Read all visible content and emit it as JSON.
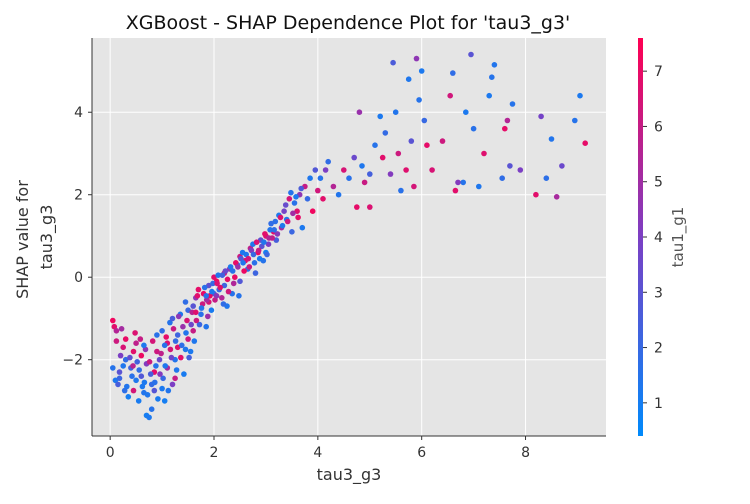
{
  "chart_data": {
    "type": "scatter",
    "title": "XGBoost - SHAP Dependence Plot for 'tau3_g3'",
    "xlabel": "tau3_g3",
    "ylabel_lines": [
      "SHAP value for",
      "tau3_g3"
    ],
    "xlim": [
      -0.35,
      9.55
    ],
    "ylim": [
      -3.85,
      5.8
    ],
    "x_ticks": [
      0,
      2,
      4,
      6,
      8
    ],
    "y_ticks": [
      -2,
      0,
      2,
      4
    ],
    "grid": true,
    "colorbar": {
      "label": "tau1_g1",
      "range": [
        0.4,
        7.6
      ],
      "ticks": [
        1,
        2,
        3,
        4,
        5,
        6,
        7
      ],
      "low_color": "#008afb",
      "mid_color": "#7c3fc4",
      "high_color": "#ff0052"
    },
    "colors": {
      "plot_bg": "#e5e5e5",
      "grid": "#ffffff",
      "axis": "#333333"
    },
    "points": [
      [
        0.05,
        -1.05,
        7.2
      ],
      [
        0.08,
        -1.2,
        6.8
      ],
      [
        0.12,
        -1.3,
        5.5
      ],
      [
        0.05,
        -2.2,
        1.5
      ],
      [
        0.1,
        -2.5,
        1.2
      ],
      [
        0.15,
        -2.6,
        2.5
      ],
      [
        0.18,
        -2.3,
        3.0
      ],
      [
        0.2,
        -1.9,
        4.0
      ],
      [
        0.25,
        -1.7,
        6.5
      ],
      [
        0.3,
        -2.0,
        1.8
      ],
      [
        0.3,
        -1.5,
        7.0
      ],
      [
        0.35,
        -2.9,
        1.0
      ],
      [
        0.4,
        -2.2,
        2.2
      ],
      [
        0.45,
        -1.8,
        6.8
      ],
      [
        0.5,
        -2.5,
        1.3
      ],
      [
        0.5,
        -1.6,
        5.8
      ],
      [
        0.55,
        -3.0,
        1.1
      ],
      [
        0.6,
        -2.4,
        2.8
      ],
      [
        0.6,
        -1.9,
        7.1
      ],
      [
        0.65,
        -2.8,
        1.4
      ],
      [
        0.7,
        -2.1,
        4.2
      ],
      [
        0.7,
        -3.35,
        1.0
      ],
      [
        0.75,
        -3.4,
        1.2
      ],
      [
        0.8,
        -3.2,
        1.5
      ],
      [
        0.8,
        -2.6,
        1.9
      ],
      [
        0.85,
        -2.3,
        6.9
      ],
      [
        0.9,
        -1.4,
        1.6
      ],
      [
        0.9,
        -1.8,
        6.2
      ],
      [
        0.95,
        -2.0,
        3.5
      ],
      [
        1.0,
        -1.3,
        1.8
      ],
      [
        1.0,
        -2.7,
        1.2
      ],
      [
        1.05,
        -3.0,
        1.0
      ],
      [
        1.1,
        -2.2,
        5.2
      ],
      [
        1.1,
        -1.6,
        6.6
      ],
      [
        1.15,
        -1.1,
        1.5
      ],
      [
        1.2,
        -2.6,
        4.0
      ],
      [
        1.2,
        -1.0,
        2.5
      ],
      [
        1.25,
        -2.0,
        1.4
      ],
      [
        1.3,
        -1.7,
        6.7
      ],
      [
        1.3,
        -1.4,
        2.2
      ],
      [
        1.35,
        -0.9,
        1.3
      ],
      [
        1.4,
        -1.2,
        4.8
      ],
      [
        1.45,
        -0.6,
        1.8
      ],
      [
        1.5,
        -1.5,
        6.3
      ],
      [
        1.5,
        -0.8,
        2.0
      ],
      [
        1.55,
        -1.8,
        1.2
      ],
      [
        1.6,
        -0.7,
        3.0
      ],
      [
        1.6,
        -1.3,
        6.0
      ],
      [
        1.65,
        -0.5,
        4.5
      ],
      [
        1.7,
        -0.3,
        6.9
      ],
      [
        1.75,
        -0.9,
        1.6
      ],
      [
        1.8,
        -0.4,
        7.0
      ],
      [
        1.85,
        -1.2,
        1.4
      ],
      [
        1.9,
        -0.2,
        3.2
      ],
      [
        1.9,
        -0.6,
        6.5
      ],
      [
        1.95,
        -0.8,
        1.1
      ],
      [
        2.0,
        0.0,
        6.8
      ],
      [
        2.0,
        -0.4,
        2.6
      ],
      [
        2.05,
        -0.1,
        7.2
      ],
      [
        2.1,
        -0.3,
        1.9
      ],
      [
        2.15,
        -0.5,
        5.5
      ],
      [
        2.2,
        0.1,
        6.1
      ],
      [
        2.2,
        -0.2,
        2.2
      ],
      [
        2.25,
        -0.7,
        1.3
      ],
      [
        2.3,
        0.2,
        4.6
      ],
      [
        2.35,
        -0.4,
        1.5
      ],
      [
        2.4,
        0.0,
        7.0
      ],
      [
        2.45,
        0.3,
        1.4
      ],
      [
        2.5,
        0.5,
        6.2
      ],
      [
        2.5,
        -0.1,
        2.8
      ],
      [
        2.55,
        0.6,
        1.2
      ],
      [
        2.6,
        0.4,
        6.8
      ],
      [
        2.65,
        0.2,
        1.7
      ],
      [
        2.7,
        0.7,
        5.8
      ],
      [
        2.75,
        0.8,
        1.3
      ],
      [
        2.8,
        0.1,
        2.2
      ],
      [
        2.85,
        0.6,
        7.1
      ],
      [
        2.9,
        0.9,
        3.2
      ],
      [
        2.95,
        0.4,
        1.5
      ],
      [
        3.0,
        1.0,
        6.6
      ],
      [
        3.0,
        0.6,
        1.0
      ],
      [
        3.05,
        0.8,
        4.0
      ],
      [
        3.1,
        1.3,
        1.8
      ],
      [
        3.15,
        1.1,
        6.9
      ],
      [
        3.2,
        0.9,
        2.5
      ],
      [
        3.25,
        1.5,
        1.2
      ],
      [
        3.3,
        1.2,
        5.2
      ],
      [
        3.35,
        1.6,
        3.8
      ],
      [
        3.4,
        1.4,
        1.4
      ],
      [
        3.45,
        1.9,
        6.4
      ],
      [
        3.5,
        1.1,
        2.1
      ],
      [
        3.55,
        1.8,
        1.6
      ],
      [
        3.6,
        1.6,
        6.7
      ],
      [
        3.65,
        2.0,
        4.5
      ],
      [
        3.7,
        1.2,
        1.2
      ],
      [
        3.75,
        2.2,
        6.0
      ],
      [
        3.8,
        1.9,
        1.9
      ],
      [
        3.85,
        2.4,
        1.3
      ],
      [
        3.9,
        1.6,
        7.2
      ],
      [
        3.95,
        2.6,
        2.8
      ],
      [
        4.0,
        2.1,
        6.3
      ],
      [
        4.05,
        2.4,
        1.5
      ],
      [
        4.1,
        1.9,
        6.8
      ],
      [
        4.15,
        2.6,
        4.0
      ],
      [
        4.2,
        2.8,
        1.8
      ],
      [
        4.3,
        2.2,
        5.5
      ],
      [
        4.4,
        2.0,
        1.4
      ],
      [
        4.5,
        2.6,
        6.5
      ],
      [
        4.6,
        2.4,
        1.6
      ],
      [
        4.7,
        2.9,
        3.5
      ],
      [
        4.75,
        1.7,
        6.9
      ],
      [
        4.8,
        4.0,
        4.8
      ],
      [
        4.85,
        2.7,
        1.3
      ],
      [
        4.9,
        2.3,
        6.1
      ],
      [
        5.0,
        2.5,
        2.4
      ],
      [
        5.0,
        1.7,
        6.6
      ],
      [
        5.1,
        3.2,
        1.5
      ],
      [
        5.2,
        3.9,
        1.2
      ],
      [
        5.25,
        2.9,
        6.8
      ],
      [
        5.3,
        3.5,
        1.9
      ],
      [
        5.4,
        2.5,
        4.2
      ],
      [
        5.45,
        5.2,
        2.6
      ],
      [
        5.5,
        4.0,
        1.4
      ],
      [
        5.55,
        3.0,
        6.2
      ],
      [
        5.6,
        2.1,
        1.6
      ],
      [
        5.7,
        2.6,
        6.7
      ],
      [
        5.75,
        4.8,
        1.3
      ],
      [
        5.8,
        3.3,
        3.0
      ],
      [
        5.85,
        2.2,
        6.4
      ],
      [
        5.9,
        5.3,
        4.5
      ],
      [
        5.95,
        4.3,
        1.5
      ],
      [
        6.0,
        5.0,
        1.2
      ],
      [
        6.05,
        3.8,
        2.0
      ],
      [
        6.1,
        3.2,
        6.9
      ],
      [
        6.2,
        2.6,
        6.5
      ],
      [
        6.4,
        3.3,
        6.2
      ],
      [
        6.55,
        4.4,
        6.3
      ],
      [
        6.6,
        4.95,
        1.8
      ],
      [
        6.65,
        2.1,
        6.8
      ],
      [
        6.7,
        2.3,
        4.2
      ],
      [
        6.8,
        2.3,
        1.5
      ],
      [
        6.85,
        4.0,
        1.2
      ],
      [
        6.95,
        5.4,
        3.0
      ],
      [
        7.0,
        3.6,
        1.6
      ],
      [
        7.1,
        2.2,
        1.3
      ],
      [
        7.2,
        3.0,
        6.7
      ],
      [
        7.3,
        4.4,
        1.2
      ],
      [
        7.35,
        4.85,
        1.5
      ],
      [
        7.4,
        5.15,
        1.4
      ],
      [
        7.55,
        2.4,
        1.8
      ],
      [
        7.6,
        3.6,
        6.9
      ],
      [
        7.65,
        3.8,
        5.5
      ],
      [
        7.7,
        2.7,
        3.0
      ],
      [
        7.75,
        4.2,
        1.5
      ],
      [
        7.9,
        2.6,
        4.0
      ],
      [
        8.2,
        2.0,
        6.8
      ],
      [
        8.3,
        3.9,
        3.8
      ],
      [
        8.4,
        2.4,
        1.7
      ],
      [
        8.5,
        3.35,
        1.4
      ],
      [
        8.6,
        1.95,
        5.2
      ],
      [
        8.7,
        2.7,
        3.5
      ],
      [
        8.95,
        3.8,
        1.5
      ],
      [
        9.05,
        4.4,
        1.2
      ],
      [
        9.15,
        3.25,
        6.9
      ],
      [
        0.12,
        -1.55,
        6.2
      ],
      [
        0.22,
        -1.25,
        5.1
      ],
      [
        0.28,
        -2.75,
        1.7
      ],
      [
        0.38,
        -1.95,
        3.3
      ],
      [
        0.42,
        -2.4,
        1.6
      ],
      [
        0.48,
        -1.35,
        6.6
      ],
      [
        0.52,
        -2.05,
        2.3
      ],
      [
        0.58,
        -1.5,
        6.0
      ],
      [
        0.62,
        -2.65,
        1.2
      ],
      [
        0.68,
        -1.75,
        4.6
      ],
      [
        0.72,
        -2.85,
        1.3
      ],
      [
        0.78,
        -2.35,
        2.5
      ],
      [
        0.82,
        -1.55,
        6.4
      ],
      [
        0.88,
        -2.15,
        1.5
      ],
      [
        0.92,
        -2.95,
        1.1
      ],
      [
        0.98,
        -1.85,
        5.8
      ],
      [
        1.02,
        -2.45,
        2.0
      ],
      [
        1.08,
        -1.45,
        6.9
      ],
      [
        1.12,
        -2.75,
        1.4
      ],
      [
        1.18,
        -1.95,
        3.7
      ],
      [
        1.22,
        -1.25,
        6.1
      ],
      [
        1.28,
        -2.25,
        1.3
      ],
      [
        1.32,
        -0.95,
        4.4
      ],
      [
        1.38,
        -1.65,
        1.7
      ],
      [
        1.42,
        -2.35,
        1.1
      ],
      [
        1.48,
        -1.05,
        6.5
      ],
      [
        1.52,
        -1.95,
        2.4
      ],
      [
        1.58,
        -0.85,
        5.6
      ],
      [
        1.62,
        -1.55,
        1.3
      ],
      [
        1.68,
        -0.45,
        6.8
      ],
      [
        1.72,
        -1.15,
        2.1
      ],
      [
        1.78,
        -0.65,
        6.2
      ],
      [
        1.82,
        -0.25,
        1.6
      ],
      [
        1.88,
        -0.95,
        4.9
      ],
      [
        1.92,
        -0.45,
        7.0
      ],
      [
        1.98,
        -0.15,
        2.0
      ],
      [
        2.02,
        -0.55,
        6.0
      ],
      [
        2.08,
        0.05,
        1.4
      ],
      [
        2.12,
        -0.25,
        6.7
      ],
      [
        2.18,
        -0.65,
        1.8
      ],
      [
        2.22,
        0.15,
        3.5
      ],
      [
        2.28,
        -0.35,
        6.3
      ],
      [
        2.32,
        0.25,
        1.2
      ],
      [
        2.38,
        -0.15,
        5.4
      ],
      [
        2.42,
        0.35,
        6.9
      ],
      [
        2.48,
        -0.45,
        1.5
      ],
      [
        2.52,
        0.45,
        2.7
      ],
      [
        2.58,
        0.15,
        7.1
      ],
      [
        2.62,
        0.55,
        1.3
      ],
      [
        2.68,
        0.25,
        6.1
      ],
      [
        2.72,
        0.65,
        4.1
      ],
      [
        2.78,
        0.35,
        1.6
      ],
      [
        2.82,
        0.85,
        6.5
      ],
      [
        2.88,
        0.45,
        1.1
      ],
      [
        2.92,
        0.75,
        3.0
      ],
      [
        2.98,
        1.05,
        6.8
      ],
      [
        3.02,
        0.55,
        2.1
      ],
      [
        3.08,
        1.15,
        1.4
      ],
      [
        3.12,
        0.95,
        5.9
      ],
      [
        3.18,
        1.35,
        1.7
      ],
      [
        3.22,
        1.05,
        4.3
      ],
      [
        3.28,
        1.45,
        6.6
      ],
      [
        3.32,
        1.25,
        1.3
      ],
      [
        3.38,
        1.75,
        3.4
      ],
      [
        3.42,
        1.35,
        6.2
      ],
      [
        3.48,
        2.05,
        1.5
      ],
      [
        3.52,
        1.55,
        5.0
      ],
      [
        3.58,
        1.95,
        1.2
      ],
      [
        3.62,
        1.45,
        6.9
      ],
      [
        3.68,
        2.15,
        2.6
      ],
      [
        0.18,
        -2.45,
        2.1
      ],
      [
        0.32,
        -2.65,
        1.4
      ],
      [
        0.44,
        -2.15,
        5.6
      ],
      [
        0.56,
        -2.25,
        1.8
      ],
      [
        0.66,
        -2.55,
        1.2
      ],
      [
        0.76,
        -2.05,
        6.1
      ],
      [
        0.86,
        -2.55,
        1.6
      ],
      [
        0.96,
        -2.35,
        4.2
      ],
      [
        1.06,
        -2.15,
        1.3
      ],
      [
        1.16,
        -1.75,
        6.4
      ],
      [
        1.26,
        -1.55,
        1.9
      ],
      [
        1.36,
        -1.95,
        6.8
      ],
      [
        1.46,
        -1.35,
        1.4
      ],
      [
        1.56,
        -1.15,
        3.6
      ],
      [
        1.66,
        -1.05,
        6.2
      ],
      [
        1.76,
        -0.75,
        1.5
      ],
      [
        1.86,
        -0.55,
        5.2
      ],
      [
        1.96,
        -0.35,
        1.2
      ],
      [
        2.06,
        -0.15,
        6.6
      ],
      [
        2.16,
        0.05,
        2.3
      ],
      [
        2.26,
        -0.05,
        6.9
      ],
      [
        2.36,
        0.15,
        1.6
      ],
      [
        2.46,
        0.25,
        4.8
      ],
      [
        2.56,
        0.35,
        1.3
      ],
      [
        2.66,
        0.45,
        6.3
      ],
      [
        2.76,
        0.55,
        2.0
      ],
      [
        2.86,
        0.65,
        6.0
      ],
      [
        2.96,
        0.85,
        1.4
      ],
      [
        3.06,
        0.95,
        5.5
      ],
      [
        3.16,
        1.15,
        1.7
      ],
      [
        0.25,
        -2.15,
        1.3
      ],
      [
        0.45,
        -2.75,
        6.4
      ],
      [
        0.65,
        -1.65,
        1.2
      ],
      [
        0.85,
        -2.75,
        2.9
      ],
      [
        1.05,
        -1.65,
        1.5
      ],
      [
        1.25,
        -2.45,
        6.0
      ],
      [
        1.45,
        -1.75,
        1.3
      ],
      [
        1.65,
        -0.85,
        6.7
      ],
      [
        1.85,
        -0.45,
        1.6
      ],
      [
        2.05,
        -0.45,
        4.4
      ]
    ]
  }
}
